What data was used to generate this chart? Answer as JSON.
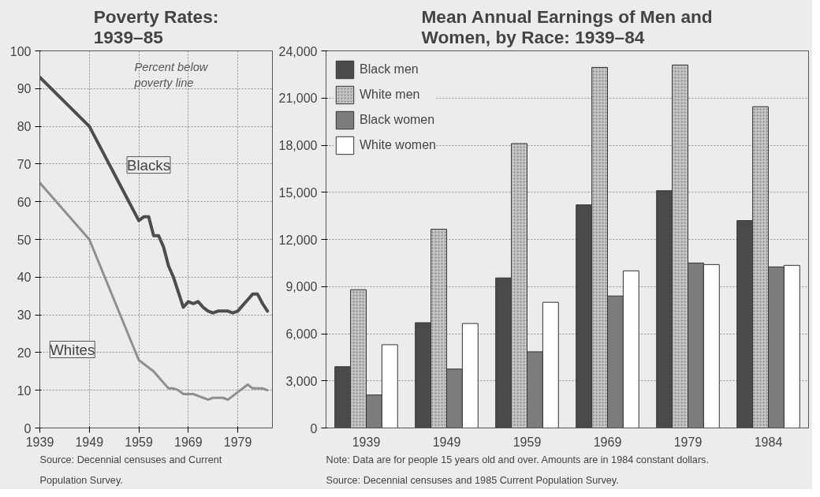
{
  "chart_data": [
    {
      "type": "line",
      "title": "Poverty Rates: 1939–85",
      "annotations": [
        "Percent below poverty line",
        "Source: Decennial censuses and Current Population Survey."
      ],
      "xlim": [
        1939,
        1986
      ],
      "xticks": [
        1939,
        1949,
        1959,
        1969,
        1979
      ],
      "ylim": [
        0,
        100
      ],
      "yticks": [
        0,
        10,
        20,
        30,
        40,
        50,
        60,
        70,
        80,
        90,
        100
      ],
      "grid": true,
      "series": [
        {
          "name": "Blacks",
          "color": "#4d4d4d",
          "x": [
            1939,
            1949,
            1959,
            1960,
            1961,
            1962,
            1963,
            1964,
            1965,
            1966,
            1967,
            1968,
            1969,
            1970,
            1971,
            1972,
            1973,
            1974,
            1975,
            1976,
            1977,
            1978,
            1979,
            1980,
            1981,
            1982,
            1983,
            1984,
            1985
          ],
          "values": [
            93,
            80,
            55,
            56,
            56,
            51,
            51,
            48,
            43,
            40,
            36,
            32,
            33.5,
            33,
            33.5,
            32,
            31,
            30.5,
            31,
            31,
            31,
            30.5,
            31,
            32.5,
            34,
            35.5,
            35.5,
            33,
            31
          ]
        },
        {
          "name": "Whites",
          "color": "#8f8f8f",
          "x": [
            1939,
            1949,
            1959,
            1960,
            1961,
            1962,
            1963,
            1964,
            1965,
            1966,
            1967,
            1968,
            1969,
            1970,
            1971,
            1972,
            1973,
            1974,
            1975,
            1976,
            1977,
            1978,
            1979,
            1980,
            1981,
            1982,
            1983,
            1984,
            1985
          ],
          "values": [
            65,
            50,
            18,
            17,
            16,
            15,
            13.5,
            12,
            10.5,
            10.5,
            10,
            9,
            9,
            9,
            8.5,
            8,
            7.5,
            8,
            8,
            8,
            7.5,
            8.5,
            9.5,
            10.5,
            11.5,
            10.5,
            10.5,
            10.5,
            10
          ]
        }
      ]
    },
    {
      "type": "bar",
      "title": "Mean Annual Earnings of Men and Women, by Race: 1939–84",
      "annotations": [
        "Note: Data are for people 15 years old and over. Amounts are in 1984 constant dollars. Source: Decennial censuses and 1985 Current Population Survey."
      ],
      "categories": [
        "1939",
        "1949",
        "1959",
        "1969",
        "1979",
        "1984"
      ],
      "ylim": [
        0,
        24000
      ],
      "yticks": [
        0,
        {
          "value": 3000,
          "label": "3,000"
        },
        {
          "value": 6000,
          "label": "6,000"
        },
        {
          "value": 9000,
          "label": "9,000"
        },
        {
          "value": 12000,
          "label": "12,000"
        },
        {
          "value": 15000,
          "label": "15,000"
        },
        {
          "value": 18000,
          "label": "18,000"
        },
        {
          "value": 21000,
          "label": "21,000"
        },
        {
          "value": 24000,
          "label": "24,000"
        }
      ],
      "grid": "y",
      "legend": "top left",
      "series": [
        {
          "name": "Black men",
          "color": "#4a4a4a",
          "values": [
            3900,
            6700,
            9550,
            14200,
            15100,
            13200
          ]
        },
        {
          "name": "White men",
          "color": "#c4c4c4",
          "values": [
            8800,
            12650,
            18100,
            22950,
            23100,
            20450
          ]
        },
        {
          "name": "Black women",
          "color": "#7c7c7c",
          "values": [
            2100,
            3750,
            4850,
            8400,
            10500,
            10250
          ]
        },
        {
          "name": "White women",
          "color": "#ffffff",
          "values": [
            5300,
            6650,
            8000,
            10000,
            10400,
            10350
          ]
        }
      ]
    }
  ]
}
